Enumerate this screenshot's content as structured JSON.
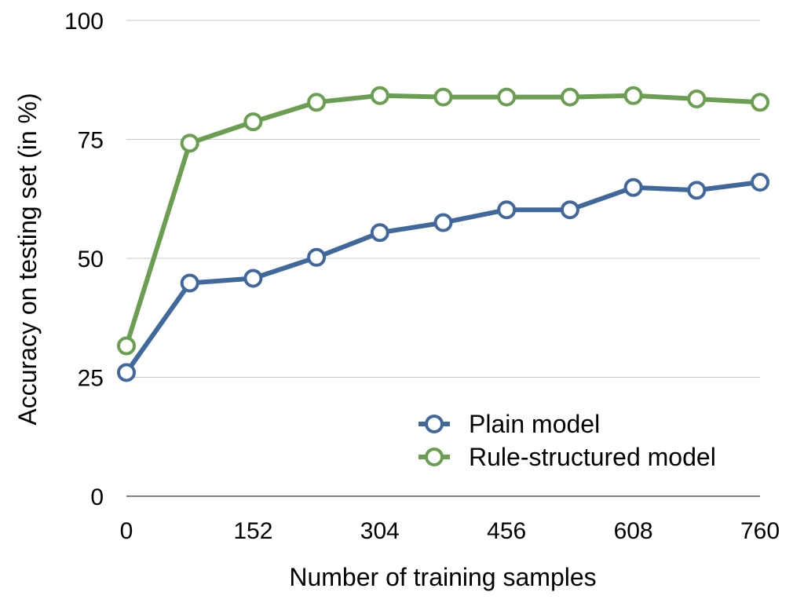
{
  "chart_data": {
    "type": "line",
    "title": "",
    "xlabel": "Number of training samples",
    "ylabel": "Accuracy on testing set (in %)",
    "x": [
      0,
      76,
      152,
      228,
      304,
      380,
      456,
      532,
      608,
      684,
      760
    ],
    "xticks": [
      "0",
      "152",
      "304",
      "456",
      "608",
      "760"
    ],
    "xtick_values": [
      0,
      152,
      304,
      456,
      608,
      760
    ],
    "yticks": [
      "0",
      "25",
      "50",
      "75",
      "100"
    ],
    "ytick_values": [
      0,
      25,
      50,
      75,
      100
    ],
    "xlim": [
      0,
      760
    ],
    "ylim": [
      0,
      100
    ],
    "grid": "horizontal",
    "legend_position": "bottom-right",
    "series": [
      {
        "name": "Plain model",
        "color": "#41689c",
        "values": [
          26,
          44.8,
          45.8,
          50.2,
          55.4,
          57.5,
          60.2,
          60.2,
          64.9,
          64.3,
          66
        ]
      },
      {
        "name": "Rule-structured model",
        "color": "#6a9e50",
        "values": [
          31.6,
          74.2,
          78.7,
          82.8,
          84.2,
          83.9,
          83.9,
          83.9,
          84.2,
          83.5,
          82.8
        ]
      }
    ]
  }
}
